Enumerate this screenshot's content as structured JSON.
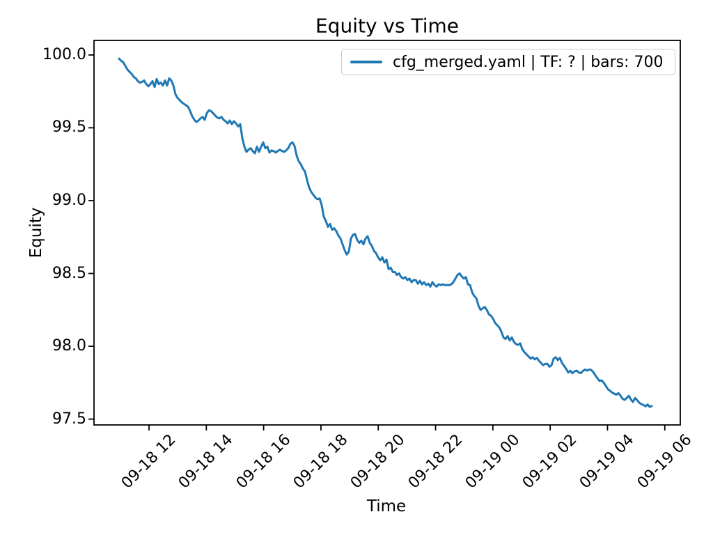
{
  "chart_data": {
    "type": "line",
    "title": "Equity vs Time",
    "xlabel": "Time",
    "ylabel": "Equity",
    "legend_label": "cfg_merged.yaml | TF: ? | bars: 700",
    "legend_position": "upper right",
    "grid": false,
    "line_color": "#1f77b4",
    "x_axis": {
      "unit": "hours relative to 09-18 12:00",
      "range": [
        -1.92,
        18.54
      ],
      "ticks": [
        {
          "t": 0,
          "label": "09-18 12"
        },
        {
          "t": 2,
          "label": "09-18 14"
        },
        {
          "t": 4,
          "label": "09-18 16"
        },
        {
          "t": 6,
          "label": "09-18 18"
        },
        {
          "t": 8,
          "label": "09-18 20"
        },
        {
          "t": 10,
          "label": "09-18 22"
        },
        {
          "t": 12,
          "label": "09-19 00"
        },
        {
          "t": 14,
          "label": "09-19 02"
        },
        {
          "t": 16,
          "label": "09-19 04"
        },
        {
          "t": 18,
          "label": "09-19 06"
        }
      ]
    },
    "y_axis": {
      "range": [
        97.46,
        100.1
      ],
      "ticks": [
        {
          "v": 100.0,
          "label": "100.0"
        },
        {
          "v": 99.5,
          "label": "99.5"
        },
        {
          "v": 99.0,
          "label": "99.0"
        },
        {
          "v": 98.5,
          "label": "98.5"
        },
        {
          "v": 98.0,
          "label": "98.0"
        },
        {
          "v": 97.5,
          "label": "97.5"
        }
      ]
    },
    "series": [
      {
        "name": "cfg_merged.yaml | TF: ? | bars: 700",
        "t_start": -1.045,
        "t_end": 17.546,
        "values": [
          99.975,
          99.96,
          99.95,
          99.925,
          99.9,
          99.885,
          99.87,
          99.85,
          99.84,
          99.82,
          99.81,
          99.815,
          99.825,
          99.8,
          99.785,
          99.8,
          99.82,
          99.78,
          99.835,
          99.8,
          99.81,
          99.79,
          99.825,
          99.79,
          99.84,
          99.825,
          99.79,
          99.73,
          99.705,
          99.69,
          99.675,
          99.665,
          99.655,
          99.645,
          99.615,
          99.58,
          99.555,
          99.54,
          99.55,
          99.565,
          99.575,
          99.555,
          99.6,
          99.62,
          99.615,
          99.6,
          99.585,
          99.57,
          99.565,
          99.575,
          99.555,
          99.545,
          99.53,
          99.55,
          99.525,
          99.545,
          99.53,
          99.51,
          99.525,
          99.43,
          99.37,
          99.335,
          99.35,
          99.36,
          99.34,
          99.325,
          99.37,
          99.335,
          99.37,
          99.4,
          99.36,
          99.37,
          99.33,
          99.345,
          99.34,
          99.33,
          99.34,
          99.35,
          99.34,
          99.335,
          99.345,
          99.36,
          99.39,
          99.4,
          99.375,
          99.31,
          99.27,
          99.25,
          99.22,
          99.2,
          99.14,
          99.09,
          99.06,
          99.04,
          99.02,
          99.01,
          99.015,
          98.97,
          98.89,
          98.86,
          98.82,
          98.84,
          98.8,
          98.81,
          98.79,
          98.76,
          98.74,
          98.7,
          98.66,
          98.63,
          98.65,
          98.74,
          98.765,
          98.77,
          98.73,
          98.71,
          98.725,
          98.7,
          98.74,
          98.755,
          98.71,
          98.69,
          98.655,
          98.64,
          98.61,
          98.59,
          98.61,
          98.575,
          98.595,
          98.53,
          98.54,
          98.51,
          98.51,
          98.49,
          98.5,
          98.475,
          98.465,
          98.475,
          98.455,
          98.465,
          98.44,
          98.455,
          98.455,
          98.43,
          98.45,
          98.425,
          98.44,
          98.42,
          98.43,
          98.41,
          98.44,
          98.42,
          98.41,
          98.425,
          98.42,
          98.425,
          98.42,
          98.42,
          98.42,
          98.425,
          98.44,
          98.465,
          98.49,
          98.5,
          98.48,
          98.465,
          98.475,
          98.425,
          98.42,
          98.37,
          98.345,
          98.33,
          98.28,
          98.25,
          98.26,
          98.27,
          98.25,
          98.22,
          98.21,
          98.19,
          98.16,
          98.145,
          98.13,
          98.1,
          98.06,
          98.05,
          98.07,
          98.04,
          98.06,
          98.03,
          98.015,
          98.01,
          98.02,
          97.98,
          97.96,
          97.945,
          97.93,
          97.915,
          97.925,
          97.91,
          97.92,
          97.9,
          97.885,
          97.87,
          97.88,
          97.88,
          97.86,
          97.87,
          97.915,
          97.925,
          97.905,
          97.92,
          97.885,
          97.865,
          97.845,
          97.82,
          97.832,
          97.815,
          97.828,
          97.833,
          97.82,
          97.816,
          97.83,
          97.84,
          97.833,
          97.84,
          97.838,
          97.822,
          97.8,
          97.78,
          97.762,
          97.766,
          97.75,
          97.728,
          97.705,
          97.695,
          97.682,
          97.675,
          97.668,
          97.678,
          97.662,
          97.64,
          97.632,
          97.645,
          97.66,
          97.635,
          97.618,
          97.645,
          97.63,
          97.612,
          97.603,
          97.597,
          97.588,
          97.6,
          97.584,
          97.59
        ]
      }
    ]
  }
}
